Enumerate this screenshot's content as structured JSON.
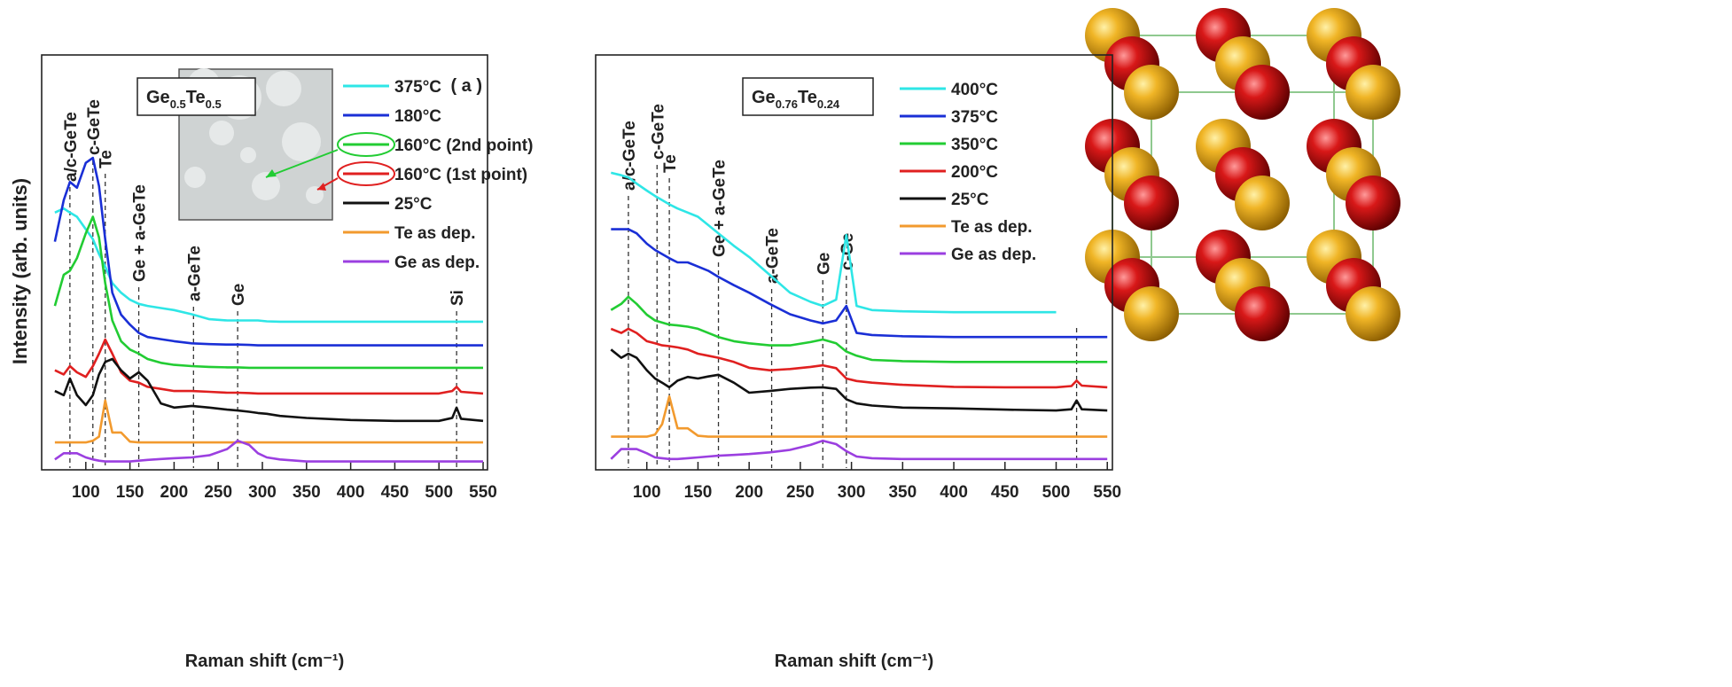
{
  "chart_data": [
    {
      "type": "line",
      "sample_label": [
        "Ge",
        "0.5",
        "Te",
        "0.5"
      ],
      "panel_label": "( a )",
      "x_label": "Raman shift (cm⁻¹)",
      "y_label": "Intensity (arb. units)",
      "x": [
        65,
        75,
        82,
        90,
        100,
        108,
        115,
        122,
        130,
        140,
        150,
        160,
        170,
        185,
        200,
        220,
        240,
        260,
        272,
        285,
        295,
        305,
        320,
        350,
        400,
        450,
        500,
        515,
        520,
        525,
        550
      ],
      "xlim": [
        50,
        555
      ],
      "xticks": [
        100,
        150,
        200,
        250,
        300,
        350,
        400,
        450,
        500,
        550
      ],
      "ylim": [
        0,
        100
      ],
      "series": [
        {
          "name": "375°C",
          "color": "#2ee6e6",
          "values": [
            62,
            63,
            62,
            61,
            58,
            55.6,
            52,
            49,
            45,
            42.7,
            41,
            40,
            39.5,
            39,
            38.5,
            37.5,
            36.3,
            36,
            36,
            36,
            36,
            35.8,
            35.7,
            35.7,
            35.7,
            35.7,
            35.7,
            35.7,
            35.7,
            35.7,
            35.7
          ]
        },
        {
          "name": "180°C",
          "color": "#1a2fd6",
          "values": [
            55,
            65,
            69.4,
            68,
            74,
            75.2,
            68.4,
            55.6,
            42.7,
            37.4,
            35,
            33,
            32,
            31.5,
            31,
            30.5,
            30.3,
            30.2,
            30.2,
            30.1,
            30,
            30,
            30,
            30,
            30,
            30,
            30,
            30,
            30,
            30,
            30
          ]
        },
        {
          "name": "160°C (2nd point)",
          "color": "#22cc33",
          "values": [
            39.5,
            47,
            48,
            51,
            57,
            61,
            56,
            45,
            36,
            31,
            29,
            28,
            26.7,
            25.8,
            25.3,
            25,
            24.8,
            24.7,
            24.7,
            24.6,
            24.6,
            24.6,
            24.6,
            24.6,
            24.6,
            24.6,
            24.6,
            24.6,
            24.6,
            24.6,
            24.6
          ]
        },
        {
          "name": "160°C (1st point)",
          "color": "#e02020",
          "values": [
            24,
            23,
            25,
            23.5,
            22.4,
            25,
            28,
            31.4,
            28,
            23.5,
            21.5,
            21,
            20,
            19.5,
            19,
            19,
            18.8,
            18.6,
            18.6,
            18.5,
            18.4,
            18.4,
            18.4,
            18.4,
            18.4,
            18.4,
            18.4,
            19,
            20,
            18.8,
            18.4
          ]
        },
        {
          "name": "25°C",
          "color": "#111111",
          "values": [
            19,
            18,
            22,
            18,
            15.6,
            18,
            23,
            26,
            26.7,
            24,
            22,
            23.5,
            21.5,
            16,
            15,
            15.4,
            15,
            14.5,
            14.3,
            14,
            13.7,
            13.5,
            13,
            12.5,
            12,
            11.8,
            11.8,
            12.5,
            15,
            12.3,
            11.8
          ]
        },
        {
          "name": "Te as dep.",
          "color": "#f29a2e",
          "values": [
            6.6,
            6.6,
            6.6,
            6.6,
            6.6,
            7,
            8,
            16.7,
            9,
            9,
            6.8,
            6.6,
            6.6,
            6.6,
            6.6,
            6.6,
            6.6,
            6.6,
            6.6,
            6.6,
            6.6,
            6.6,
            6.6,
            6.6,
            6.6,
            6.6,
            6.6,
            6.6,
            6.6,
            6.6,
            6.6
          ]
        },
        {
          "name": "Ge as dep.",
          "color": "#9b3fe0",
          "values": [
            2.5,
            4,
            4,
            4,
            3,
            2.5,
            2.2,
            2,
            2,
            2,
            2,
            2.2,
            2.4,
            2.6,
            2.8,
            3,
            3.5,
            5,
            7,
            6,
            4,
            3,
            2.5,
            2,
            2,
            2,
            2,
            2,
            2,
            2,
            2
          ]
        }
      ],
      "annotations": [
        {
          "x": 82,
          "label": "a/c-GeTe",
          "color": "#111111"
        },
        {
          "x": 108,
          "label": "c-GeTe",
          "color": "#111111"
        },
        {
          "x": 122,
          "label": "Te",
          "color": "#f29a2e"
        },
        {
          "x": 160,
          "label": "Ge + a-GeTe",
          "color": "#9b3fe0"
        },
        {
          "x": 222,
          "label": "a-GeTe",
          "color": "#111111"
        },
        {
          "x": 272,
          "label": "Ge",
          "color": "#9b3fe0"
        },
        {
          "x": 520,
          "label": "Si",
          "color": "#111111"
        }
      ]
    },
    {
      "type": "line",
      "sample_label": [
        "Ge",
        "0.76",
        "Te",
        "0.24"
      ],
      "x_label": "Raman shift (cm⁻¹)",
      "x": [
        65,
        75,
        82,
        90,
        100,
        108,
        115,
        122,
        130,
        140,
        150,
        160,
        170,
        185,
        200,
        220,
        240,
        260,
        272,
        285,
        295,
        305,
        320,
        350,
        400,
        450,
        500,
        515,
        520,
        525,
        550
      ],
      "xlim": [
        50,
        555
      ],
      "xticks": [
        100,
        150,
        200,
        250,
        300,
        350,
        400,
        450,
        500,
        550
      ],
      "ylim": [
        0,
        100
      ],
      "series": [
        {
          "name": "400°C",
          "color": "#2ee6e6",
          "values": [
            71.6,
            71,
            70.5,
            69,
            67.3,
            66,
            65,
            64,
            63,
            62,
            61,
            59,
            57,
            54,
            51.3,
            47,
            42.7,
            40.5,
            39.5,
            41,
            56.6,
            39.5,
            38.5,
            38.2,
            38,
            38,
            38,
            null,
            null,
            null,
            null
          ]
        },
        {
          "name": "375°C",
          "color": "#1a2fd6",
          "values": [
            58,
            58,
            58,
            57,
            54.5,
            53,
            52,
            51,
            50,
            50,
            49,
            48,
            46.5,
            44.5,
            42.7,
            40,
            37.5,
            36,
            35.3,
            36,
            39.5,
            33,
            32.5,
            32.2,
            32,
            32,
            32,
            32,
            32,
            32,
            32
          ]
        },
        {
          "name": "350°C",
          "color": "#22cc33",
          "values": [
            38.5,
            40,
            41.7,
            40,
            37.4,
            36,
            35.5,
            35,
            34.8,
            34.5,
            34,
            33,
            32,
            31,
            30.5,
            30,
            30,
            30.8,
            31.4,
            30.5,
            28.5,
            27.5,
            26.5,
            26.2,
            26,
            26,
            26,
            26,
            26,
            26,
            26
          ]
        },
        {
          "name": "200°C",
          "color": "#e02020",
          "values": [
            34,
            33,
            34,
            33,
            31,
            30.5,
            30,
            29.8,
            29.5,
            29,
            28,
            27.5,
            27,
            26,
            24.6,
            24,
            24.3,
            24.8,
            25.2,
            24.5,
            22,
            21.4,
            21,
            20.5,
            20,
            19.9,
            19.9,
            20.2,
            21.5,
            20.3,
            19.9
          ]
        },
        {
          "name": "25°C",
          "color": "#111111",
          "values": [
            29,
            27,
            28,
            27,
            24,
            22,
            21,
            19.9,
            21.5,
            22.4,
            22,
            22.5,
            22.9,
            21,
            18.6,
            19,
            19.5,
            19.8,
            19.9,
            19.5,
            17,
            16,
            15.5,
            15,
            14.8,
            14.5,
            14.3,
            14.6,
            16.7,
            14.6,
            14.3
          ]
        },
        {
          "name": "Te as dep.",
          "color": "#f29a2e",
          "values": [
            8,
            8,
            8,
            8,
            8,
            8.5,
            11,
            17.7,
            10,
            10,
            8.2,
            8,
            8,
            8,
            8,
            8,
            8,
            8,
            8,
            8,
            8,
            8,
            8,
            8,
            8,
            8,
            8,
            8,
            8,
            8,
            8
          ]
        },
        {
          "name": "Ge as dep.",
          "color": "#9b3fe0",
          "values": [
            2.6,
            5,
            5,
            5,
            4,
            3,
            2.8,
            2.6,
            2.6,
            2.8,
            3,
            3.2,
            3.4,
            3.6,
            3.8,
            4.2,
            4.8,
            6,
            7,
            6.2,
            4.5,
            3.2,
            2.8,
            2.6,
            2.6,
            2.6,
            2.6,
            2.6,
            2.6,
            2.6,
            2.6
          ]
        }
      ],
      "annotations": [
        {
          "x": 82,
          "label": "a/c-GeTe",
          "color": "#111111"
        },
        {
          "x": 110,
          "label": "c-GeTe",
          "color": "#111111"
        },
        {
          "x": 122,
          "label": "Te",
          "color": "#f29a2e"
        },
        {
          "x": 170,
          "label": "Ge + a-GeTe",
          "color": "#9b3fe0"
        },
        {
          "x": 222,
          "label": "a-GeTe",
          "color": "#111111"
        },
        {
          "x": 272,
          "label": "Ge",
          "color": "#9b3fe0"
        },
        {
          "x": 295,
          "label": "c-Ge",
          "color": "#9b3fe0"
        },
        {
          "x": 520
        }
      ]
    }
  ]
}
